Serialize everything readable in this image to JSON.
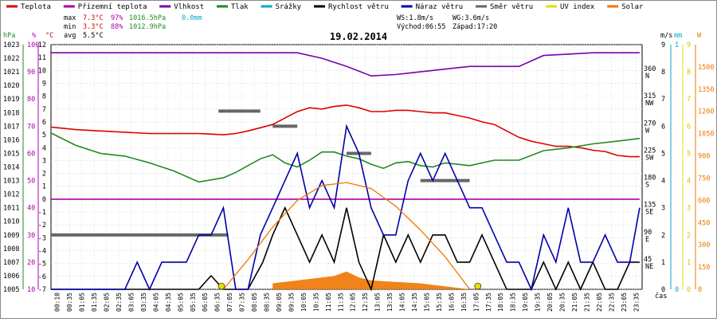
{
  "chart_data": {
    "type": "line",
    "title": "19.02.2014",
    "legend": [
      {
        "name": "Teplota",
        "color": "#dd0000"
      },
      {
        "name": "Přízemní teplota",
        "color": "#aa00aa"
      },
      {
        "name": "Vlhkost",
        "color": "#7700aa"
      },
      {
        "name": "Tlak",
        "color": "#228822"
      },
      {
        "name": "Srážky",
        "color": "#00aacc"
      },
      {
        "name": "Rychlost větru",
        "color": "#000000"
      },
      {
        "name": "Náraz větru",
        "color": "#0000aa"
      },
      {
        "name": "Směr větru",
        "color": "#666666"
      },
      {
        "name": "UV index",
        "color": "#e0e000"
      },
      {
        "name": "Solar",
        "color": "#ee7700"
      }
    ],
    "stats": [
      {
        "label": "max",
        "temp": "7.3°C",
        "hum": "97%",
        "press": "1016.5hPa",
        "rain": "0.0mm"
      },
      {
        "label": "min",
        "temp": "3.3°C",
        "hum": "88%",
        "press": "1012.9hPa",
        "rain": ""
      },
      {
        "label": "avg",
        "temp": "5.5°C",
        "hum": "",
        "press": "",
        "rain": ""
      }
    ],
    "wind_info": {
      "ws": "WS:1.8m/s",
      "wg": "WG:3.6m/s",
      "sunrise": "Východ:06:55",
      "sunset": "Západ:17:20"
    },
    "left_axes": {
      "hpa": {
        "label": "hPa",
        "color": "#228822",
        "ticks": [
          "1023",
          "1022",
          "1021",
          "1020",
          "1019",
          "1018",
          "1017",
          "1016",
          "1015",
          "1014",
          "1013",
          "1012",
          "1011",
          "1010",
          "1009",
          "1008",
          "1007",
          "1006",
          "1005"
        ]
      },
      "pct": {
        "label": "%",
        "color": "#aa00aa",
        "ticks": [
          "100",
          "90",
          "80",
          "70",
          "60",
          "50",
          "40",
          "30",
          "20",
          "10"
        ]
      },
      "c": {
        "label": "°C",
        "color": "#cc0000",
        "ticks": [
          "12",
          "11",
          "10",
          "9",
          "8",
          "7",
          "6",
          "5",
          "4",
          "3",
          "2",
          "1",
          "0",
          "-1",
          "-2",
          "-3",
          "-4",
          "-5",
          "-6",
          "-7"
        ]
      }
    },
    "right_axes": {
      "dir": {
        "labels": [
          {
            "deg": "360",
            "name": "N",
            "t": 360
          },
          {
            "deg": "315",
            "name": "NW",
            "t": 315
          },
          {
            "deg": "270",
            "name": "W",
            "t": 270
          },
          {
            "deg": "225",
            "name": "SW",
            "t": 225
          },
          {
            "deg": "180",
            "name": "S",
            "t": 180
          },
          {
            "deg": "135",
            "name": "SE",
            "t": 135
          },
          {
            "deg": "90",
            "name": "E",
            "t": 90
          },
          {
            "deg": "45",
            "name": "NE",
            "t": 45
          }
        ]
      },
      "ms": {
        "label": "m/s",
        "ticks": [
          "9",
          "8",
          "7",
          "6",
          "5",
          "4",
          "3",
          "2",
          "1",
          "0"
        ]
      },
      "mm": {
        "label": "mm",
        "color": "#00aacc",
        "ticks": [
          "1",
          "0"
        ]
      },
      "uv": {
        "label": "",
        "ticks": [
          "9",
          "8",
          "7",
          "6",
          "5",
          "4",
          "3",
          "2",
          "1",
          "0"
        ]
      },
      "w": {
        "label": "W",
        "color": "#ee7700",
        "ticks": [
          "1500",
          "1350",
          "1200",
          "1050",
          "900",
          "750",
          "600",
          "450",
          "300",
          "150",
          "0"
        ]
      }
    },
    "xlabel": "čas",
    "x_ticks": [
      "00:10",
      "00:35",
      "01:05",
      "01:35",
      "02:05",
      "02:35",
      "03:05",
      "03:35",
      "04:05",
      "04:35",
      "05:05",
      "05:35",
      "06:05",
      "06:35",
      "07:05",
      "07:35",
      "08:05",
      "08:35",
      "09:05",
      "09:35",
      "10:05",
      "10:35",
      "11:05",
      "11:35",
      "12:05",
      "12:35",
      "13:05",
      "13:35",
      "14:05",
      "14:35",
      "15:05",
      "15:35",
      "16:05",
      "16:35",
      "17:05",
      "17:35",
      "18:05",
      "18:35",
      "19:05",
      "19:35",
      "20:05",
      "20:35",
      "21:05",
      "21:35",
      "22:05",
      "22:35",
      "23:05",
      "23:35"
    ],
    "ylim_temp": [
      -7,
      12
    ],
    "ylim_wind": [
      0,
      9
    ],
    "ylim_dir": [
      0,
      405
    ],
    "ylim_solar": [
      0,
      1650
    ],
    "ylim_press": [
      1005,
      1023
    ],
    "ylim_hum": [
      10,
      100
    ],
    "series": [
      {
        "name": "Teplota",
        "axis": "temp",
        "color": "#dd0000",
        "x": [
          0.0,
          1.0,
          2.0,
          3.0,
          4.0,
          5.0,
          6.0,
          7.0,
          7.5,
          8.0,
          9.0,
          9.5,
          10.0,
          10.5,
          11.0,
          11.5,
          12.0,
          12.5,
          13.0,
          13.5,
          14.0,
          14.5,
          15.0,
          15.5,
          16.0,
          16.5,
          17.0,
          17.5,
          18.0,
          18.5,
          19.0,
          19.5,
          20.0,
          20.5,
          21.0,
          21.5,
          22.0,
          22.5,
          23.0,
          23.5,
          23.9
        ],
        "y": [
          5.6,
          5.4,
          5.3,
          5.2,
          5.1,
          5.1,
          5.1,
          5.0,
          5.1,
          5.3,
          5.8,
          6.3,
          6.8,
          7.1,
          7.0,
          7.2,
          7.3,
          7.1,
          6.8,
          6.8,
          6.9,
          6.9,
          6.8,
          6.7,
          6.7,
          6.5,
          6.3,
          6.0,
          5.8,
          5.3,
          4.8,
          4.5,
          4.3,
          4.1,
          4.1,
          4.0,
          3.8,
          3.7,
          3.4,
          3.3,
          3.3
        ]
      },
      {
        "name": "Přízemní teplota",
        "axis": "temp",
        "color": "#aa00aa",
        "x": [
          0.0,
          23.9
        ],
        "y": [
          0.0,
          0.0
        ]
      },
      {
        "name": "Vlhkost",
        "axis": "hum",
        "color": "#7700aa",
        "x": [
          0.0,
          3.0,
          6.0,
          8.0,
          10.0,
          11.0,
          12.0,
          13.0,
          14.0,
          15.0,
          16.0,
          17.0,
          18.0,
          19.0,
          20.0,
          21.0,
          22.0,
          23.0,
          23.5,
          23.9
        ],
        "y": [
          97.0,
          97.0,
          97.0,
          97.0,
          97.0,
          95.0,
          92.0,
          88.5,
          89.0,
          90.0,
          91.0,
          92.0,
          92.0,
          92.0,
          96.0,
          96.5,
          97.0,
          97.0,
          97.0,
          97.0
        ]
      },
      {
        "name": "Tlak",
        "axis": "press",
        "color": "#228822",
        "x": [
          0.0,
          1.0,
          2.0,
          3.0,
          4.0,
          5.0,
          6.0,
          7.0,
          7.5,
          8.0,
          8.5,
          9.0,
          9.5,
          10.0,
          10.5,
          11.0,
          11.5,
          12.0,
          12.5,
          13.0,
          13.5,
          14.0,
          14.5,
          15.0,
          15.5,
          16.0,
          16.5,
          17.0,
          18.0,
          19.0,
          20.0,
          21.0,
          22.0,
          23.0,
          23.9
        ],
        "y": [
          1016.5,
          1015.6,
          1015.0,
          1014.8,
          1014.3,
          1013.7,
          1012.9,
          1013.2,
          1013.6,
          1014.1,
          1014.6,
          1014.9,
          1014.3,
          1014.0,
          1014.5,
          1015.1,
          1015.1,
          1014.8,
          1014.6,
          1014.2,
          1013.9,
          1014.3,
          1014.4,
          1014.1,
          1014.0,
          1014.3,
          1014.2,
          1014.1,
          1014.5,
          1014.5,
          1015.2,
          1015.4,
          1015.7,
          1015.9,
          1016.1
        ]
      },
      {
        "name": "Rychlost větru",
        "axis": "wind",
        "color": "#000000",
        "x": [
          0.0,
          6.0,
          6.5,
          7.0,
          8.0,
          8.6,
          9.0,
          9.5,
          10.0,
          10.5,
          11.0,
          11.5,
          12.0,
          12.5,
          13.0,
          13.5,
          14.0,
          14.5,
          15.0,
          15.5,
          16.0,
          16.5,
          17.0,
          17.5,
          18.0,
          18.5,
          19.0,
          19.5,
          20.0,
          20.5,
          21.0,
          21.5,
          22.0,
          22.5,
          23.0,
          23.5,
          23.9
        ],
        "y": [
          0.0,
          0.0,
          0.5,
          0.0,
          0.0,
          1.0,
          2.0,
          3.0,
          2.0,
          1.0,
          2.0,
          1.0,
          3.0,
          1.0,
          0.0,
          2.0,
          1.0,
          2.0,
          1.0,
          2.0,
          2.0,
          1.0,
          1.0,
          2.0,
          1.0,
          0.0,
          0.0,
          0.0,
          1.0,
          0.0,
          1.0,
          0.0,
          1.0,
          0.0,
          0.0,
          1.0,
          1.0
        ]
      },
      {
        "name": "Náraz větru",
        "axis": "wind",
        "color": "#0000aa",
        "x": [
          0.0,
          3.0,
          3.5,
          4.0,
          4.5,
          5.0,
          5.5,
          6.0,
          6.5,
          7.0,
          7.5,
          8.0,
          8.5,
          9.0,
          9.5,
          10.0,
          10.5,
          11.0,
          11.5,
          12.0,
          12.5,
          13.0,
          13.5,
          14.0,
          14.5,
          15.0,
          15.5,
          16.0,
          16.5,
          17.0,
          17.5,
          18.0,
          18.5,
          19.0,
          19.5,
          20.0,
          20.5,
          21.0,
          21.5,
          22.0,
          22.5,
          23.0,
          23.5,
          23.9
        ],
        "y": [
          0.0,
          0.0,
          1.0,
          0.0,
          1.0,
          1.0,
          1.0,
          2.0,
          2.0,
          3.0,
          0.0,
          0.0,
          2.0,
          3.0,
          4.0,
          5.0,
          3.0,
          4.0,
          3.0,
          6.0,
          5.0,
          3.0,
          2.0,
          2.0,
          4.0,
          5.0,
          4.0,
          5.0,
          4.0,
          3.0,
          3.0,
          2.0,
          1.0,
          1.0,
          0.0,
          2.0,
          1.0,
          3.0,
          1.0,
          1.0,
          2.0,
          1.0,
          1.0,
          3.0
        ]
      },
      {
        "name": "Solar",
        "axis": "solar",
        "color": "#ee7700",
        "x": [
          7.0,
          8.0,
          9.0,
          10.0,
          11.0,
          12.0,
          13.0,
          14.0,
          15.0,
          16.0,
          17.0
        ],
        "y": [
          0.0,
          200.0,
          420.0,
          600.0,
          700.0,
          720.0,
          680.0,
          560.0,
          400.0,
          220.0,
          0.0
        ]
      },
      {
        "name": "Solar (measured)",
        "axis": "solar",
        "color": "#ee7700",
        "x": [
          9.0,
          10.0,
          11.0,
          11.5,
          12.0,
          12.5,
          13.0,
          14.0,
          15.0,
          16.0,
          17.0
        ],
        "y": [
          40.0,
          60.0,
          80.0,
          90.0,
          120.0,
          80.0,
          60.0,
          50.0,
          40.0,
          20.0,
          0.0
        ]
      }
    ],
    "wind_dir_points": [
      {
        "start": 0.0,
        "end": 7.2,
        "deg": 90
      },
      {
        "start": 6.8,
        "end": 8.5,
        "deg": 295
      },
      {
        "start": 9.0,
        "end": 10.0,
        "deg": 270
      },
      {
        "start": 12.0,
        "end": 13.0,
        "deg": 225
      },
      {
        "start": 15.0,
        "end": 17.0,
        "deg": 180
      }
    ]
  }
}
